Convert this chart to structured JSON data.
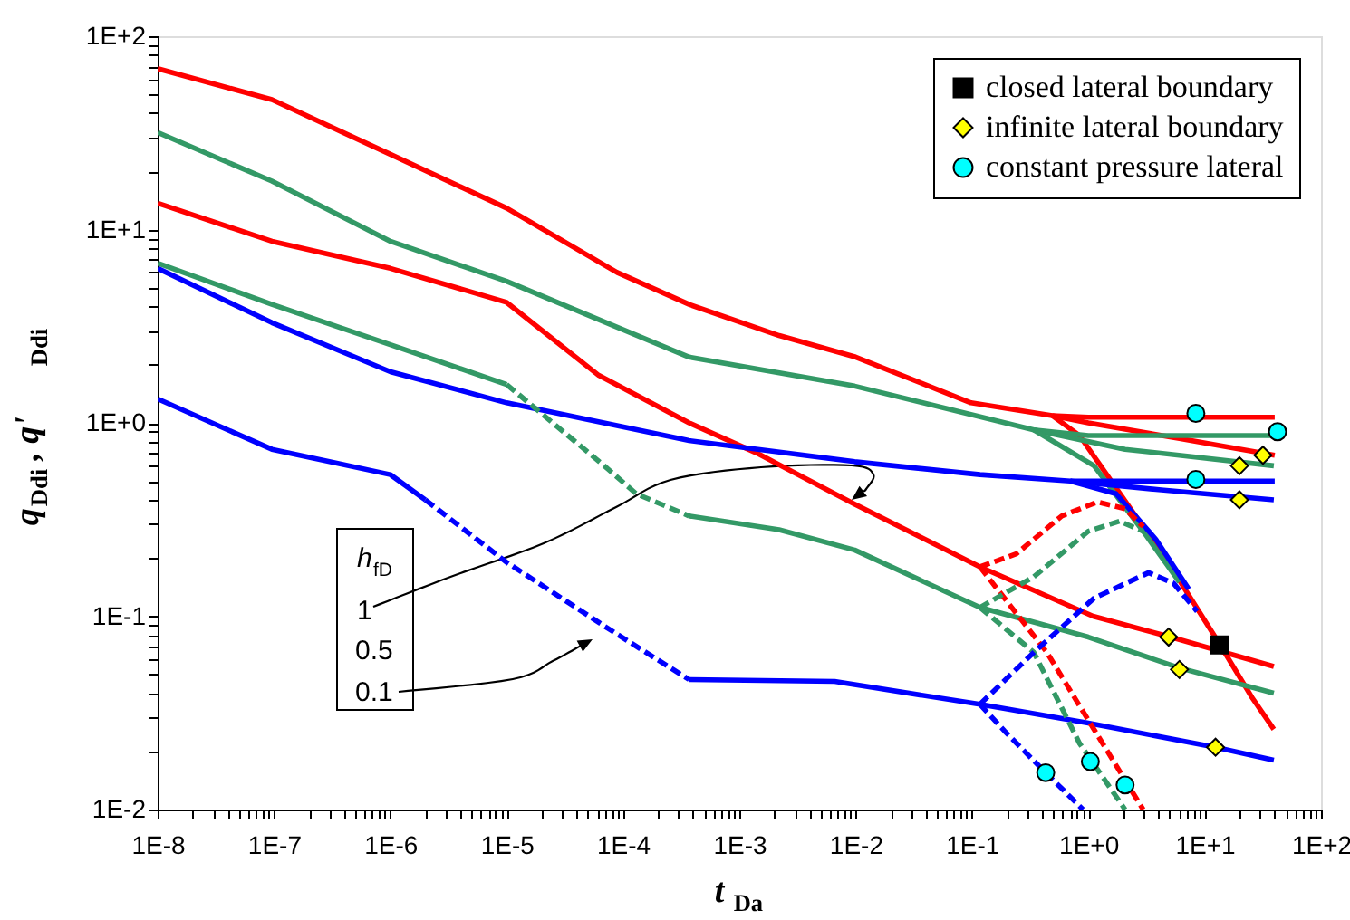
{
  "chart_data": {
    "type": "line",
    "xlabel": "t$_{Da}$",
    "ylabel": "q$_{Ddi}$,  q'$_{Ddi}$",
    "annotations": [
      "h$_{fD}$",
      "1",
      "0.5",
      "0.1"
    ],
    "log": "xy",
    "legend": "top right",
    "xlim": [
      1e-08,
      100
    ],
    "ylim": [
      0.01,
      100
    ],
    "xticks": [
      {
        "value": 1e-08,
        "label": "1E-8"
      },
      {
        "value": 2e-08,
        "label": null
      },
      {
        "value": 3e-08,
        "label": null
      },
      {
        "value": 4e-08,
        "label": null
      },
      {
        "value": 5e-08,
        "label": null
      },
      {
        "value": 6e-08,
        "label": null
      },
      {
        "value": 7e-08,
        "label": null
      },
      {
        "value": 8e-08,
        "label": null
      },
      {
        "value": 9e-08,
        "label": null
      },
      {
        "value": 1e-07,
        "label": "1E-7"
      },
      {
        "value": 2e-07,
        "label": null
      },
      {
        "value": 3e-07,
        "label": null
      },
      {
        "value": 4e-07,
        "label": null
      },
      {
        "value": 5e-07,
        "label": null
      },
      {
        "value": 6e-07,
        "label": null
      },
      {
        "value": 7e-07,
        "label": null
      },
      {
        "value": 8e-07,
        "label": null
      },
      {
        "value": 9e-07,
        "label": null
      },
      {
        "value": 1e-06,
        "label": "1E-6"
      },
      {
        "value": 2e-06,
        "label": null
      },
      {
        "value": 3e-06,
        "label": null
      },
      {
        "value": 4e-06,
        "label": null
      },
      {
        "value": 5e-06,
        "label": null
      },
      {
        "value": 6e-06,
        "label": null
      },
      {
        "value": 7e-06,
        "label": null
      },
      {
        "value": 8e-06,
        "label": null
      },
      {
        "value": 9e-06,
        "label": null
      },
      {
        "value": 1e-05,
        "label": "1E-5"
      },
      {
        "value": 2e-05,
        "label": null
      },
      {
        "value": 3e-05,
        "label": null
      },
      {
        "value": 4e-05,
        "label": null
      },
      {
        "value": 5e-05,
        "label": null
      },
      {
        "value": 6e-05,
        "label": null
      },
      {
        "value": 7e-05,
        "label": null
      },
      {
        "value": 8e-05,
        "label": null
      },
      {
        "value": 9e-05,
        "label": null
      },
      {
        "value": 0.0001,
        "label": "1E-4"
      },
      {
        "value": 0.0002,
        "label": null
      },
      {
        "value": 0.0003,
        "label": null
      },
      {
        "value": 0.0004,
        "label": null
      },
      {
        "value": 0.0005,
        "label": null
      },
      {
        "value": 0.0006,
        "label": null
      },
      {
        "value": 0.0007,
        "label": null
      },
      {
        "value": 0.0008,
        "label": null
      },
      {
        "value": 0.0009,
        "label": null
      },
      {
        "value": 0.001,
        "label": "1E-3"
      },
      {
        "value": 0.002,
        "label": null
      },
      {
        "value": 0.003,
        "label": null
      },
      {
        "value": 0.004,
        "label": null
      },
      {
        "value": 0.005,
        "label": null
      },
      {
        "value": 0.006,
        "label": null
      },
      {
        "value": 0.007,
        "label": null
      },
      {
        "value": 0.008,
        "label": null
      },
      {
        "value": 0.009,
        "label": null
      },
      {
        "value": 0.01,
        "label": "1E-2"
      },
      {
        "value": 0.02,
        "label": null
      },
      {
        "value": 0.03,
        "label": null
      },
      {
        "value": 0.04,
        "label": null
      },
      {
        "value": 0.05,
        "label": null
      },
      {
        "value": 0.06,
        "label": null
      },
      {
        "value": 0.07,
        "label": null
      },
      {
        "value": 0.08,
        "label": null
      },
      {
        "value": 0.09,
        "label": null
      },
      {
        "value": 0.1,
        "label": "1E-1"
      },
      {
        "value": 0.2,
        "label": null
      },
      {
        "value": 0.3,
        "label": null
      },
      {
        "value": 0.4,
        "label": null
      },
      {
        "value": 0.5,
        "label": null
      },
      {
        "value": 0.6,
        "label": null
      },
      {
        "value": 0.7,
        "label": null
      },
      {
        "value": 0.8,
        "label": null
      },
      {
        "value": 0.9,
        "label": null
      },
      {
        "value": 1,
        "label": "1E+0"
      },
      {
        "value": 2,
        "label": null
      },
      {
        "value": 3,
        "label": null
      },
      {
        "value": 4,
        "label": null
      },
      {
        "value": 5,
        "label": null
      },
      {
        "value": 6,
        "label": null
      },
      {
        "value": 7,
        "label": null
      },
      {
        "value": 8,
        "label": null
      },
      {
        "value": 9,
        "label": null
      },
      {
        "value": 10,
        "label": "1E+1"
      },
      {
        "value": 20,
        "label": null
      },
      {
        "value": 30,
        "label": null
      },
      {
        "value": 40,
        "label": null
      },
      {
        "value": 50,
        "label": null
      },
      {
        "value": 60,
        "label": null
      },
      {
        "value": 70,
        "label": null
      },
      {
        "value": 80,
        "label": null
      },
      {
        "value": 90,
        "label": null
      },
      {
        "value": 100,
        "label": "1E+2"
      }
    ],
    "yticks": [
      {
        "value": 0.01,
        "label": "1E-2"
      },
      {
        "value": 0.02,
        "label": null
      },
      {
        "value": 0.03,
        "label": null
      },
      {
        "value": 0.04,
        "label": null
      },
      {
        "value": 0.05,
        "label": null
      },
      {
        "value": 0.06,
        "label": null
      },
      {
        "value": 0.07,
        "label": null
      },
      {
        "value": 0.08,
        "label": null
      },
      {
        "value": 0.09,
        "label": null
      },
      {
        "value": 0.1,
        "label": "1E-1"
      },
      {
        "value": 0.2,
        "label": null
      },
      {
        "value": 0.3,
        "label": null
      },
      {
        "value": 0.4,
        "label": null
      },
      {
        "value": 0.5,
        "label": null
      },
      {
        "value": 0.6,
        "label": null
      },
      {
        "value": 0.7,
        "label": null
      },
      {
        "value": 0.8,
        "label": null
      },
      {
        "value": 0.9,
        "label": null
      },
      {
        "value": 1,
        "label": "1E+0"
      },
      {
        "value": 2,
        "label": null
      },
      {
        "value": 3,
        "label": null
      },
      {
        "value": 4,
        "label": null
      },
      {
        "value": 5,
        "label": null
      },
      {
        "value": 6,
        "label": null
      },
      {
        "value": 7,
        "label": null
      },
      {
        "value": 8,
        "label": null
      },
      {
        "value": 9,
        "label": null
      },
      {
        "value": 10,
        "label": "1E+1"
      },
      {
        "value": 20,
        "label": null
      },
      {
        "value": 30,
        "label": null
      },
      {
        "value": 40,
        "label": null
      },
      {
        "value": 50,
        "label": null
      },
      {
        "value": 60,
        "label": null
      },
      {
        "value": 70,
        "label": null
      },
      {
        "value": 80,
        "label": null
      },
      {
        "value": 90,
        "label": null
      },
      {
        "value": 100,
        "label": "1E+2"
      }
    ],
    "series": [
      {
        "type": "line",
        "color": "#ff0000",
        "line_style": "solid",
        "x": [
          1e-08,
          9.6e-08,
          1e-06,
          1e-05,
          8.9e-05,
          0.00037,
          0.0022,
          0.01,
          0.098,
          0.49,
          1.0,
          6.07,
          40
        ],
        "values": [
          68,
          47,
          24.5,
          12.9,
          6.0,
          4.1,
          2.83,
          2.19,
          1.27,
          1.09,
          1.0,
          0.83,
          0.68
        ]
      },
      {
        "type": "line",
        "color": "#ff0000",
        "line_style": "solid",
        "x": [
          0.49,
          1.0,
          40
        ],
        "values": [
          1.09,
          1.07,
          1.07
        ]
      },
      {
        "type": "line",
        "color": "#ff0000",
        "line_style": "solid",
        "x": [
          0.49,
          0.84,
          1.44,
          2.96,
          6.07,
          13.4,
          25.5,
          39.3
        ],
        "values": [
          1.09,
          0.86,
          0.54,
          0.29,
          0.153,
          0.072,
          0.038,
          0.026
        ]
      },
      {
        "type": "line",
        "color": "#ff0000",
        "line_style": "solid",
        "x": [
          1e-08,
          9.6e-08,
          1e-06,
          1e-05,
          6.2e-05,
          0.00037,
          0.0014,
          0.0098,
          0.117,
          1.1,
          5.1,
          39.3
        ],
        "values": [
          13.7,
          8.7,
          6.3,
          4.2,
          1.76,
          1.0,
          0.7,
          0.38,
          0.18,
          0.1,
          0.078,
          0.055
        ]
      },
      {
        "type": "line",
        "color": "#ff0000",
        "line_style": "dashed",
        "x": [
          0.117,
          0.24,
          0.59,
          1.2,
          2.07,
          2.96
        ],
        "values": [
          0.18,
          0.21,
          0.33,
          0.39,
          0.36,
          0.29
        ]
      },
      {
        "type": "line",
        "color": "#ff0000",
        "line_style": "dashed",
        "x": [
          0.117,
          0.44,
          1.0,
          2.96
        ],
        "values": [
          0.18,
          0.065,
          0.029,
          0.01
        ]
      },
      {
        "type": "line",
        "color": "#339966",
        "line_style": "solid",
        "x": [
          1e-08,
          9.6e-08,
          1e-06,
          1e-05,
          0.00037,
          0.0098,
          0.34,
          2.07,
          39.3
        ],
        "values": [
          31.8,
          17.8,
          8.7,
          5.4,
          2.19,
          1.55,
          0.92,
          0.73,
          0.6
        ]
      },
      {
        "type": "line",
        "color": "#339966",
        "line_style": "solid",
        "x": [
          0.34,
          1.0,
          39.3
        ],
        "values": [
          0.92,
          0.86,
          0.86
        ]
      },
      {
        "type": "line",
        "color": "#339966",
        "line_style": "solid",
        "x": [
          0.34,
          1.12,
          2.96,
          6.07
        ],
        "values": [
          0.92,
          0.6,
          0.275,
          0.15
        ]
      },
      {
        "type": "line",
        "color": "#339966",
        "line_style": "solid",
        "x": [
          1e-08,
          9.6e-08,
          1e-06,
          1e-05
        ],
        "values": [
          6.7,
          4.1,
          2.54,
          1.58
        ]
      },
      {
        "type": "line",
        "color": "#339966",
        "line_style": "dashed",
        "x": [
          1e-05,
          6.9e-05,
          0.00013,
          0.00037
        ],
        "values": [
          1.58,
          0.6,
          0.43,
          0.33
        ]
      },
      {
        "type": "line",
        "color": "#339966",
        "line_style": "solid",
        "x": [
          0.00037,
          0.0022,
          0.0098,
          0.117,
          1.0,
          6.07,
          39.3
        ],
        "values": [
          0.33,
          0.28,
          0.22,
          0.111,
          0.078,
          0.054,
          0.04
        ]
      },
      {
        "type": "line",
        "color": "#339966",
        "line_style": "dashed",
        "x": [
          0.117,
          0.34,
          1.0,
          1.85,
          2.96
        ],
        "values": [
          0.111,
          0.16,
          0.275,
          0.31,
          0.275
        ]
      },
      {
        "type": "line",
        "color": "#339966",
        "line_style": "dashed",
        "x": [
          0.117,
          0.34,
          0.84,
          2.07
        ],
        "values": [
          0.111,
          0.065,
          0.022,
          0.01
        ]
      },
      {
        "type": "line",
        "color": "#0000ff",
        "line_style": "solid",
        "x": [
          1e-08,
          9.6e-08,
          1e-06,
          1e-05,
          0.00037,
          0.0098,
          0.117,
          0.7,
          4.24,
          39.3
        ],
        "values": [
          6.3,
          3.3,
          1.84,
          1.27,
          0.81,
          0.63,
          0.54,
          0.5,
          0.45,
          0.4
        ]
      },
      {
        "type": "line",
        "color": "#0000ff",
        "line_style": "solid",
        "x": [
          0.7,
          40
        ],
        "values": [
          0.5,
          0.5
        ]
      },
      {
        "type": "line",
        "color": "#0000ff",
        "line_style": "solid",
        "x": [
          0.7,
          1.73,
          3.8,
          7.3
        ],
        "values": [
          0.5,
          0.43,
          0.25,
          0.138
        ]
      },
      {
        "type": "line",
        "color": "#0000ff",
        "line_style": "solid",
        "x": [
          1e-08,
          9.6e-08,
          1e-06,
          2e-06
        ],
        "values": [
          1.33,
          0.73,
          0.54,
          0.4
        ]
      },
      {
        "type": "line",
        "color": "#0000ff",
        "line_style": "dashed",
        "x": [
          2e-06,
          1e-05,
          6.9e-05,
          0.00037
        ],
        "values": [
          0.4,
          0.19,
          0.089,
          0.047
        ]
      },
      {
        "type": "line",
        "color": "#0000ff",
        "line_style": "solid",
        "x": [
          0.00037,
          0.0066,
          0.117,
          1.0,
          12.4,
          39.3
        ],
        "values": [
          0.047,
          0.046,
          0.035,
          0.028,
          0.021,
          0.018
        ]
      },
      {
        "type": "line",
        "color": "#0000ff",
        "line_style": "dashed",
        "x": [
          0.117,
          0.34,
          1.12,
          3.3,
          5.4,
          8.6
        ],
        "values": [
          0.035,
          0.065,
          0.124,
          0.168,
          0.148,
          0.106
        ]
      },
      {
        "type": "line",
        "color": "#0000ff",
        "line_style": "dashed",
        "x": [
          0.117,
          0.19,
          0.43,
          0.9
        ],
        "values": [
          0.035,
          0.0255,
          0.0155,
          0.01
        ]
      },
      {
        "type": "scatter",
        "name": "closed lateral boundary",
        "color": "#000000",
        "marker": "square",
        "x": [
          13.4
        ],
        "values": [
          0.071
        ]
      },
      {
        "type": "scatter",
        "name": "infinite lateral boundary",
        "color": "#ffff00",
        "marker": "diamond",
        "x": [
          4.9,
          6.07,
          12.4,
          19.9,
          31.7,
          19.9
        ],
        "values": [
          0.078,
          0.053,
          0.021,
          0.6,
          0.68,
          0.4
        ]
      },
      {
        "type": "scatter",
        "name": "constant pressure lateral",
        "color": "#00ffff",
        "marker": "circle",
        "x": [
          8.4,
          42.3,
          8.4,
          0.43,
          1.04,
          2.07
        ],
        "values": [
          1.12,
          0.9,
          0.51,
          0.0155,
          0.0177,
          0.0134
        ]
      }
    ]
  }
}
